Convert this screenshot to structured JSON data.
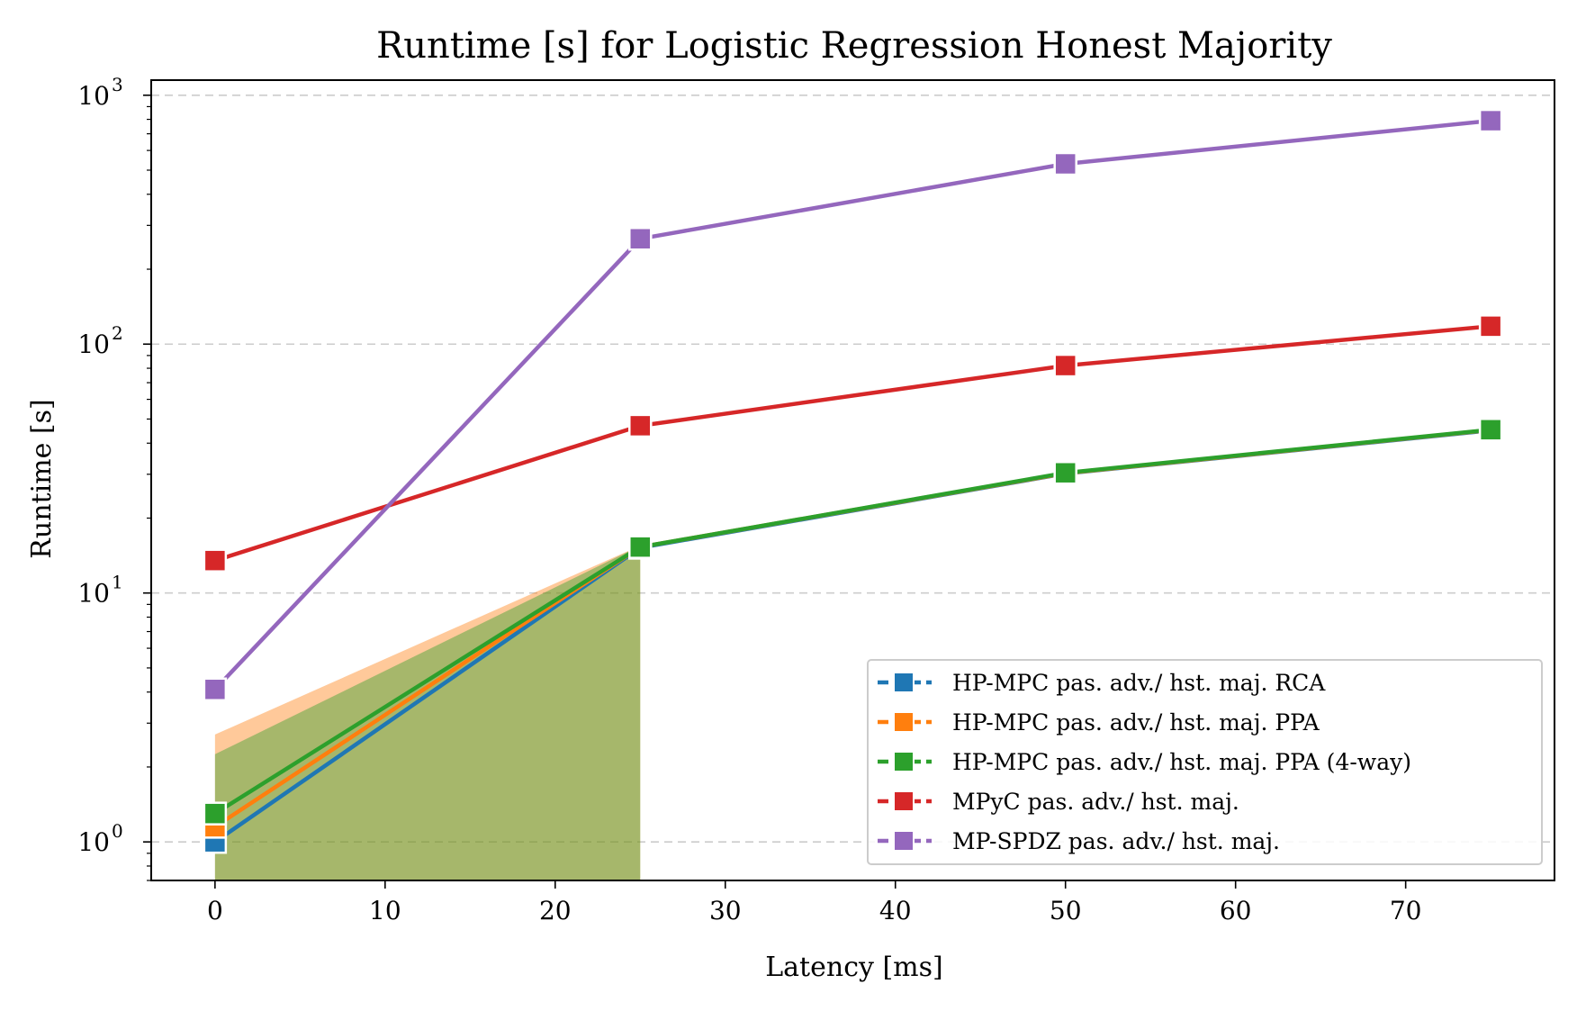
{
  "chart_data": {
    "type": "line",
    "title": "Runtime [s] for Logistic Regression Honest Majority",
    "xlabel": "Latency [ms]",
    "ylabel": "Runtime [s]",
    "yscale": "log",
    "xlim": [
      -3.75,
      78.75
    ],
    "ylim": [
      0.7,
      1150
    ],
    "x_ticks": [
      0,
      10,
      20,
      30,
      40,
      50,
      60,
      70
    ],
    "y_ticks": [
      {
        "value": 1,
        "base": "10",
        "exp": "0"
      },
      {
        "value": 10,
        "base": "10",
        "exp": "1"
      },
      {
        "value": 100,
        "base": "10",
        "exp": "2"
      },
      {
        "value": 1000,
        "base": "10",
        "exp": "3"
      }
    ],
    "grid": "horizontal dashed at major y ticks",
    "legend_position": "lower-right",
    "series": [
      {
        "name": "HP-MPC pas. adv./ hst. maj. RCA",
        "color": "#1f77b4",
        "x": [
          0,
          25,
          50,
          75
        ],
        "y": [
          1.0,
          15.2,
          30.2,
          45.0
        ]
      },
      {
        "name": "HP-MPC pas. adv./ hst. maj. PPA",
        "color": "#ff7f0e",
        "x": [
          0,
          25,
          50,
          75
        ],
        "y": [
          1.15,
          15.3,
          30.3,
          45.2
        ]
      },
      {
        "name": "HP-MPC pas. adv./ hst. maj. PPA (4-way)",
        "color": "#2ca02c",
        "x": [
          0,
          25,
          50,
          75
        ],
        "y": [
          1.3,
          15.3,
          30.4,
          45.3
        ]
      },
      {
        "name": "MPyC pas. adv./ hst. maj.",
        "color": "#d62728",
        "x": [
          0,
          25,
          50,
          75
        ],
        "y": [
          13.5,
          47,
          82,
          118
        ]
      },
      {
        "name": "MP-SPDZ pas. adv./ hst. maj.",
        "color": "#9467bd",
        "x": [
          0,
          25,
          50,
          75
        ],
        "y": [
          4.1,
          265,
          530,
          790
        ]
      }
    ],
    "shaded_bands": [
      {
        "color": "#ff7f0e",
        "x": [
          0,
          25
        ],
        "upper": [
          2.7,
          15.5
        ]
      },
      {
        "color": "#2ca02c",
        "x": [
          0,
          25
        ],
        "upper": [
          2.25,
          15.5
        ]
      }
    ]
  }
}
